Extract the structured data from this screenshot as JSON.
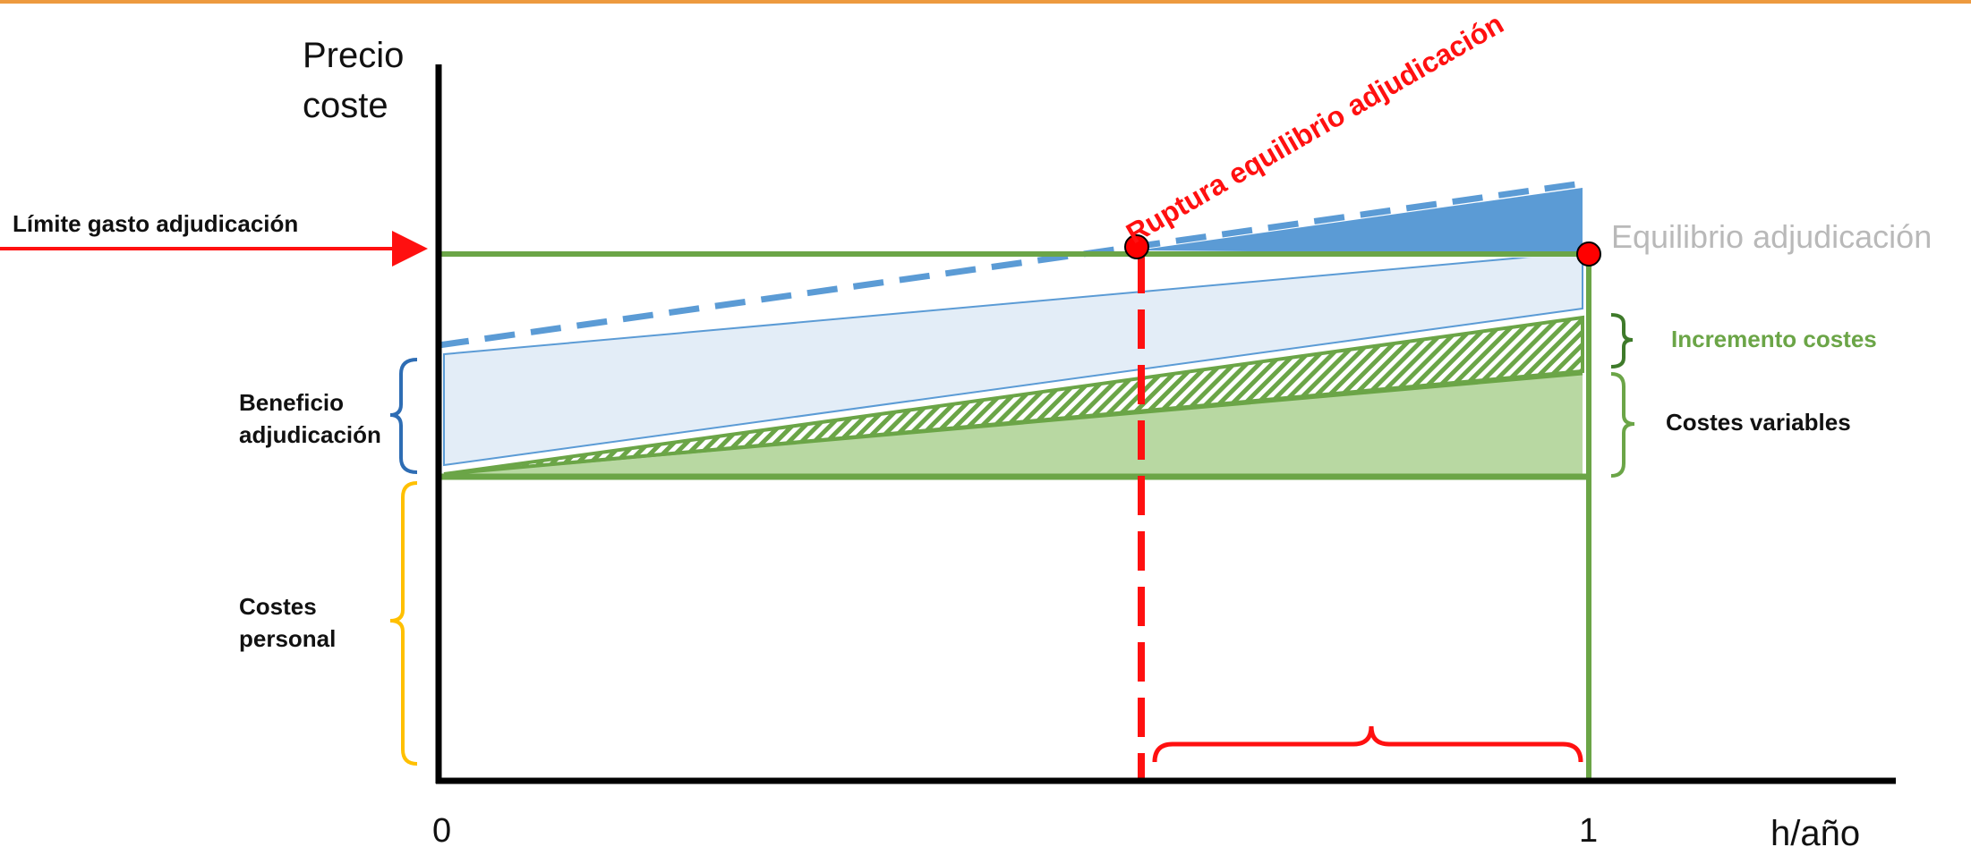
{
  "axes": {
    "y_title": "Precio\ncoste",
    "x_title": "h/año",
    "x_ticks": [
      "0",
      "1"
    ]
  },
  "labels": {
    "limite_gasto": "Límite gasto adjudicación",
    "beneficio": "Beneficio\nadjudicación",
    "costes_personal": "Costes\npersonal",
    "incremento_costes": "Incremento costes",
    "costes_variables": "Costes variables",
    "equilibrio": "Equilibrio adjudicación",
    "ruptura": "Ruptura equilibrio adjudicación"
  },
  "colors": {
    "accent_bar": "#ED9A3F",
    "green": "#6BA547",
    "green_fill": "#B8D8A2",
    "blue": "#5B9BD5",
    "blue_fill": "#E3EDF7",
    "red": "#FF1010",
    "yellow_brace": "#FFC000",
    "gray_text": "#B9B9B9"
  }
}
